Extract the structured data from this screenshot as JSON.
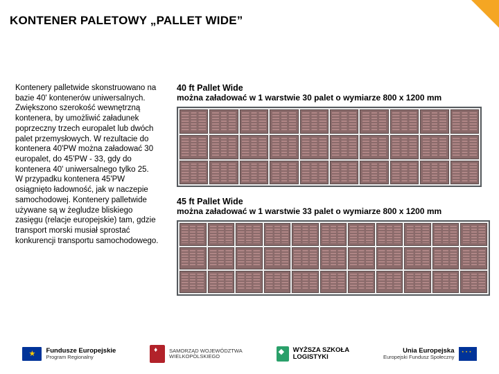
{
  "title": "KONTENER PALETOWY „PALLET WIDE”",
  "left": {
    "p1": "Kontenery palletwide skonstruowano na bazie 40' kontenerów uniwersalnych.",
    "p2": "Zwiększono szerokość wewnętrzną kontenera, by umożliwić załadunek poprzeczny trzech europalet lub dwóch palet przemysłowych. W rezultacie do kontenera 40'PW można załadować 30 europalet, do 45'PW - 33, gdy do kontenera 40' uniwersalnego tylko 25.",
    "p3": "W przypadku kontenera 45'PW osiągnięto ładowność, jak w naczepie samochodowej. Kontenery palletwide używane są w żegludze bliskiego zasięgu (relacje europejskie) tam, gdzie transport morski musiał sprostać konkurencji transportu samochodowego."
  },
  "c40": {
    "title": "40 ft Pallet Wide",
    "sub": "można załadować w 1 warstwie 30 palet o wymiarze 800 x 1200 mm",
    "cols": 10,
    "rows": 3,
    "pallet_color": "#8a6a6a",
    "border_color": "#555a5e"
  },
  "c45": {
    "title": "45 ft Pallet Wide",
    "sub": "można załadować w 1 warstwie 33 palet o wymiarze 800 x 1200 mm",
    "cols": 11,
    "rows": 3,
    "pallet_color": "#8a6a6a",
    "border_color": "#555a5e"
  },
  "footer": {
    "fe": {
      "t1": "Fundusze",
      "t2": "Europejskie",
      "t3": "Program Regionalny"
    },
    "sw": {
      "t1": "SAMORZĄD WOJEWÓDZTWA",
      "t2": "WIELKOPOLSKIEGO"
    },
    "wsl": {
      "t1": "WYŻSZA SZKOŁA",
      "t2": "LOGISTYKI"
    },
    "ue": {
      "t1": "Unia Europejska",
      "t2": "Europejski Fundusz Społeczny"
    }
  },
  "colors": {
    "accent": "#f5a623",
    "eu_blue": "#003399",
    "eu_gold": "#ffcc00"
  }
}
